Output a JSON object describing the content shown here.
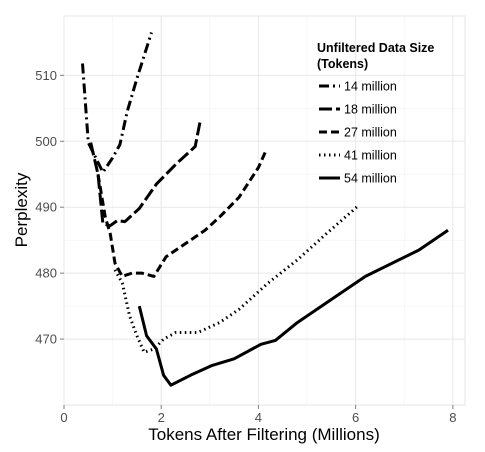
{
  "chart_data": {
    "type": "line",
    "title": "",
    "xlabel": "Tokens After Filtering (Millions)",
    "ylabel": "Perplexity",
    "xlim": [
      0,
      8.25
    ],
    "ylim": [
      460,
      519
    ],
    "xticks": [
      0,
      2,
      4,
      6,
      8
    ],
    "yticks": [
      470,
      480,
      490,
      500,
      510
    ],
    "grid": true,
    "legend": {
      "title_line1": "Unfiltered Data Size",
      "title_line2": "(Tokens)",
      "position": "top-right"
    },
    "series": [
      {
        "name": "14 million",
        "dash": "dotdash",
        "x": [
          0.38,
          0.5,
          0.62,
          0.8,
          1.0,
          1.15,
          1.3,
          1.5,
          1.8
        ],
        "y": [
          511.8,
          499.8,
          498.0,
          495.3,
          497.5,
          499.5,
          504.5,
          509.5,
          516.5
        ]
      },
      {
        "name": "18 million",
        "dash": "longdash",
        "x": [
          0.55,
          0.7,
          0.8,
          0.95,
          1.1,
          1.25,
          1.55,
          1.9,
          2.3,
          2.7,
          2.8
        ],
        "y": [
          499.8,
          495.0,
          487.5,
          487.2,
          488.0,
          487.8,
          489.8,
          493.5,
          496.5,
          499.2,
          503.0
        ]
      },
      {
        "name": "27 million",
        "dash": "dashed",
        "x": [
          0.7,
          0.85,
          0.95,
          1.05,
          1.2,
          1.4,
          1.6,
          1.85,
          2.1,
          2.3,
          2.6,
          2.9,
          3.2,
          3.6,
          4.0,
          4.15
        ],
        "y": [
          495.0,
          488.5,
          486.0,
          481.5,
          479.5,
          480.0,
          480.0,
          479.5,
          482.5,
          483.5,
          485.0,
          486.5,
          488.5,
          491.5,
          496.0,
          498.5
        ]
      },
      {
        "name": "41 million",
        "dash": "dotted",
        "x": [
          1.05,
          1.2,
          1.35,
          1.5,
          1.65,
          1.85,
          2.05,
          2.3,
          2.75,
          3.2,
          3.6,
          4.2,
          4.8,
          5.4,
          6.05
        ],
        "y": [
          480.5,
          478.5,
          473.5,
          470.5,
          468.0,
          468.5,
          470.0,
          471.0,
          471.0,
          472.5,
          474.5,
          478.5,
          482.0,
          486.0,
          490.2
        ]
      },
      {
        "name": "54 million",
        "dash": "solid",
        "x": [
          1.55,
          1.7,
          1.9,
          2.05,
          2.2,
          2.6,
          3.05,
          3.5,
          4.05,
          4.35,
          4.8,
          5.4,
          6.2,
          7.3,
          7.9
        ],
        "y": [
          475.0,
          470.5,
          468.5,
          464.5,
          463.0,
          464.5,
          466.0,
          467.0,
          469.2,
          469.8,
          472.5,
          475.5,
          479.5,
          483.5,
          486.5
        ]
      }
    ]
  }
}
